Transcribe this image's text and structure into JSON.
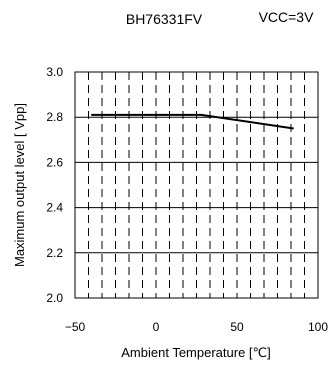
{
  "chart_data": {
    "type": "line",
    "title": "BH76331FV",
    "subtitle": "VCC=3V",
    "xlabel": "Ambient Temperature [℃]",
    "ylabel": "Maximum output level [ Vpp]",
    "xlim": [
      -50,
      100
    ],
    "ylim": [
      2.0,
      3.0
    ],
    "x_ticks": [
      -50,
      0,
      50,
      100
    ],
    "x_tick_labels": [
      "−50",
      "0",
      "50",
      "100"
    ],
    "y_ticks": [
      2.0,
      2.2,
      2.4,
      2.6,
      2.8,
      3.0
    ],
    "y_tick_labels": [
      "2.0",
      "2.2",
      "2.4",
      "2.6",
      "2.8",
      "3.0"
    ],
    "grid": {
      "horizontal": "solid",
      "vertical": "dashed"
    },
    "legend": "none",
    "series": [
      {
        "color": "#000000",
        "x": [
          -40,
          28,
          85
        ],
        "y": [
          2.81,
          2.81,
          2.75
        ]
      }
    ]
  }
}
